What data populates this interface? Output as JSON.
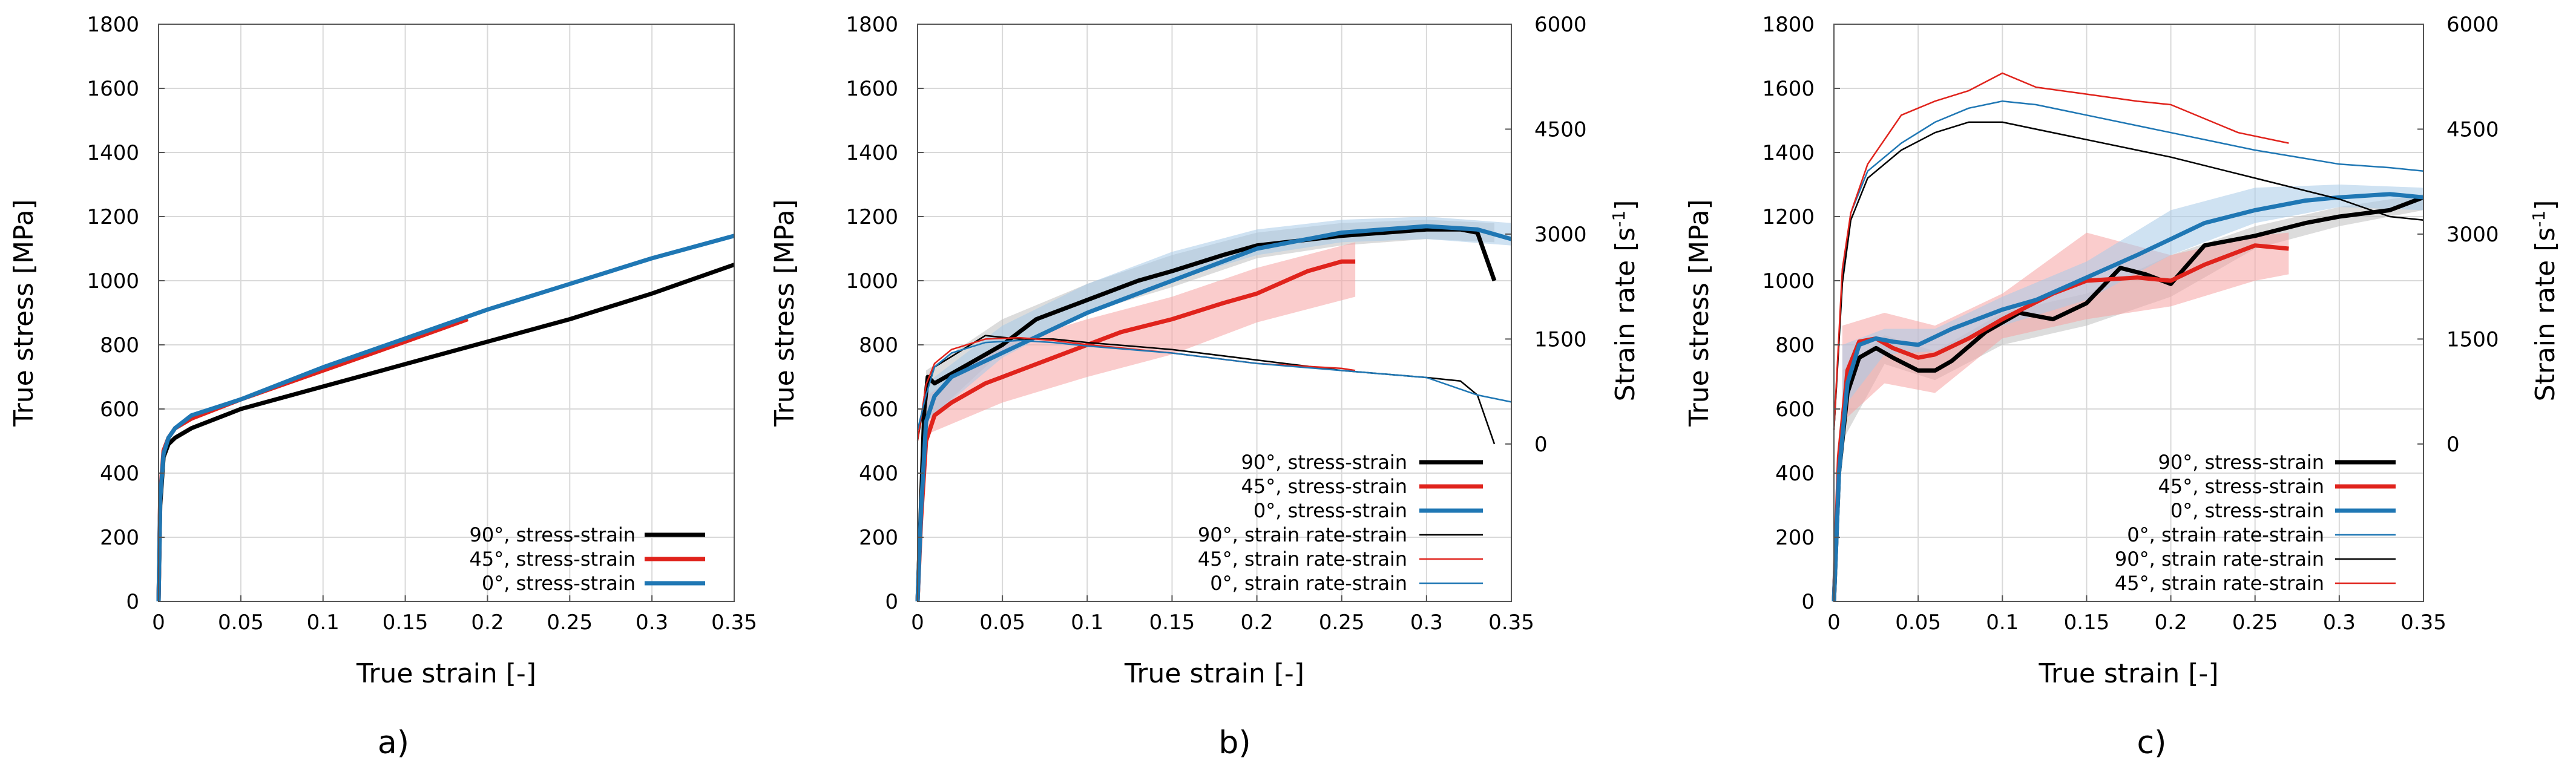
{
  "chart_data": [
    {
      "panel": "a)",
      "type": "line",
      "xlabel": "True strain [-]",
      "ylabel": "True stress [MPa]",
      "xlim": [
        0,
        0.35
      ],
      "ylim": [
        0,
        1800
      ],
      "xticks": [
        0,
        0.05,
        0.1,
        0.15,
        0.2,
        0.25,
        0.3,
        0.35
      ],
      "xtick_labels": [
        "0",
        "0.05",
        "0.1",
        "0.15",
        "0.2",
        "0.25",
        "0.3",
        "0.35"
      ],
      "yticks": [
        0,
        200,
        400,
        600,
        800,
        1000,
        1200,
        1400,
        1600,
        1800
      ],
      "ytick_labels": [
        "0",
        "200",
        "400",
        "600",
        "800",
        "1000",
        "1200",
        "1400",
        "1600",
        "1800"
      ],
      "grid": true,
      "legend_position": "bottom-right",
      "series": [
        {
          "name": "90°, stress-strain",
          "color": "#000000",
          "width": "thick",
          "axis": "left",
          "x": [
            0,
            0.001,
            0.003,
            0.006,
            0.01,
            0.02,
            0.05,
            0.1,
            0.15,
            0.2,
            0.25,
            0.3,
            0.35
          ],
          "y": [
            0,
            300,
            450,
            490,
            510,
            540,
            600,
            670,
            740,
            810,
            880,
            960,
            1050
          ]
        },
        {
          "name": "45°, stress-strain",
          "color": "#e0231c",
          "width": "thick",
          "axis": "left",
          "x": [
            0,
            0.001,
            0.003,
            0.006,
            0.01,
            0.02,
            0.05,
            0.1,
            0.15,
            0.188
          ],
          "y": [
            0,
            330,
            470,
            510,
            540,
            570,
            630,
            720,
            810,
            880
          ]
        },
        {
          "name": "0°, stress-strain",
          "color": "#1f77b4",
          "width": "thick",
          "axis": "left",
          "x": [
            0,
            0.001,
            0.003,
            0.006,
            0.01,
            0.02,
            0.05,
            0.1,
            0.15,
            0.2,
            0.25,
            0.3,
            0.35
          ],
          "y": [
            0,
            320,
            460,
            510,
            540,
            580,
            630,
            730,
            820,
            910,
            990,
            1070,
            1140
          ]
        }
      ]
    },
    {
      "panel": "b)",
      "type": "line",
      "xlabel": "True strain [-]",
      "ylabel": "True stress [MPa]",
      "y2label": "Strain rate [s",
      "y2label_sup": "-1",
      "y2label_end": "]",
      "xlim": [
        0,
        0.35
      ],
      "ylim": [
        0,
        1800
      ],
      "y2lim": [
        -2250,
        6000
      ],
      "xticks": [
        0,
        0.05,
        0.1,
        0.15,
        0.2,
        0.25,
        0.3,
        0.35
      ],
      "xtick_labels": [
        "0",
        "0.05",
        "0.1",
        "0.15",
        "0.2",
        "0.25",
        "0.3",
        "0.35"
      ],
      "yticks": [
        0,
        200,
        400,
        600,
        800,
        1000,
        1200,
        1400,
        1600,
        1800
      ],
      "ytick_labels": [
        "0",
        "200",
        "400",
        "600",
        "800",
        "1000",
        "1200",
        "1400",
        "1600",
        "1800"
      ],
      "y2ticks": [
        0,
        1500,
        3000,
        4500,
        6000
      ],
      "y2tick_labels": [
        "0",
        "1500",
        "3000",
        "4500",
        "6000"
      ],
      "grid": true,
      "legend_position": "bottom-right",
      "bands": [
        {
          "color": "#c0c0c0",
          "x": [
            0.005,
            0.05,
            0.1,
            0.15,
            0.2,
            0.25,
            0.3,
            0.34
          ],
          "lower": [
            560,
            780,
            900,
            980,
            1070,
            1110,
            1130,
            1120
          ],
          "upper": [
            720,
            880,
            990,
            1080,
            1150,
            1180,
            1190,
            1180
          ]
        },
        {
          "color": "#f5a3a3",
          "x": [
            0.005,
            0.05,
            0.1,
            0.15,
            0.2,
            0.258
          ],
          "lower": [
            520,
            620,
            700,
            770,
            870,
            950
          ],
          "upper": [
            640,
            800,
            880,
            950,
            1040,
            1120
          ]
        },
        {
          "color": "#a8cbe8",
          "x": [
            0.005,
            0.05,
            0.1,
            0.15,
            0.2,
            0.25,
            0.3,
            0.35
          ],
          "lower": [
            560,
            760,
            900,
            1000,
            1080,
            1120,
            1130,
            1110
          ],
          "upper": [
            680,
            860,
            990,
            1090,
            1160,
            1190,
            1200,
            1180
          ]
        }
      ],
      "series": [
        {
          "name": "90°,  stress-strain",
          "color": "#000000",
          "width": "thick",
          "axis": "left",
          "x": [
            0,
            0.002,
            0.004,
            0.006,
            0.01,
            0.02,
            0.03,
            0.05,
            0.07,
            0.1,
            0.13,
            0.15,
            0.18,
            0.2,
            0.25,
            0.3,
            0.32,
            0.33,
            0.34
          ],
          "y": [
            0,
            300,
            600,
            700,
            680,
            710,
            740,
            800,
            880,
            940,
            1000,
            1030,
            1080,
            1110,
            1140,
            1160,
            1160,
            1150,
            1000
          ]
        },
        {
          "name": "45°,  stress-strain",
          "color": "#e0231c",
          "width": "thick",
          "axis": "left",
          "x": [
            0,
            0.002,
            0.005,
            0.01,
            0.02,
            0.04,
            0.06,
            0.08,
            0.1,
            0.12,
            0.15,
            0.18,
            0.2,
            0.23,
            0.25,
            0.258
          ],
          "y": [
            0,
            250,
            500,
            580,
            620,
            680,
            720,
            760,
            800,
            840,
            880,
            930,
            960,
            1030,
            1060,
            1060
          ]
        },
        {
          "name": "0°,  stress-strain",
          "color": "#1f77b4",
          "width": "thick",
          "axis": "left",
          "x": [
            0,
            0.002,
            0.005,
            0.01,
            0.02,
            0.04,
            0.06,
            0.08,
            0.1,
            0.12,
            0.15,
            0.18,
            0.2,
            0.25,
            0.3,
            0.33,
            0.35
          ],
          "y": [
            0,
            280,
            560,
            640,
            700,
            750,
            800,
            850,
            900,
            940,
            1000,
            1060,
            1100,
            1150,
            1170,
            1160,
            1130
          ]
        },
        {
          "name": "90°,  strain rate-strain",
          "color": "#000000",
          "width": "thin",
          "axis": "right",
          "x": [
            0,
            0.005,
            0.01,
            0.02,
            0.04,
            0.06,
            0.08,
            0.1,
            0.15,
            0.2,
            0.25,
            0.3,
            0.32,
            0.33,
            0.34
          ],
          "y": [
            50,
            750,
            1100,
            1250,
            1550,
            1500,
            1500,
            1450,
            1350,
            1200,
            1050,
            950,
            900,
            700,
            0
          ]
        },
        {
          "name": "45°,  strain rate-strain",
          "color": "#e0231c",
          "width": "thin",
          "axis": "right",
          "x": [
            0,
            0.005,
            0.01,
            0.02,
            0.04,
            0.06,
            0.08,
            0.1,
            0.15,
            0.2,
            0.25,
            0.258
          ],
          "y": [
            50,
            850,
            1150,
            1350,
            1500,
            1520,
            1480,
            1420,
            1300,
            1150,
            1080,
            1050
          ]
        },
        {
          "name": "0°,  strain rate-strain",
          "color": "#1f77b4",
          "width": "thin",
          "axis": "right",
          "x": [
            0,
            0.005,
            0.01,
            0.02,
            0.04,
            0.06,
            0.08,
            0.1,
            0.15,
            0.2,
            0.25,
            0.3,
            0.33,
            0.35
          ],
          "y": [
            200,
            700,
            1100,
            1300,
            1450,
            1480,
            1450,
            1400,
            1300,
            1150,
            1050,
            950,
            700,
            600
          ]
        }
      ]
    },
    {
      "panel": "c)",
      "type": "line",
      "xlabel": "True strain [-]",
      "ylabel": "True stress [MPa]",
      "y2label": "Strain rate [s",
      "y2label_sup": "-1",
      "y2label_end": "]",
      "xlim": [
        0,
        0.35
      ],
      "ylim": [
        0,
        1800
      ],
      "y2lim": [
        -2250,
        6000
      ],
      "xticks": [
        0,
        0.05,
        0.1,
        0.15,
        0.2,
        0.25,
        0.3,
        0.35
      ],
      "xtick_labels": [
        "0",
        "0.05",
        "0.1",
        "0.15",
        "0.2",
        "0.25",
        "0.3",
        "0.35"
      ],
      "yticks": [
        0,
        200,
        400,
        600,
        800,
        1000,
        1200,
        1400,
        1600,
        1800
      ],
      "ytick_labels": [
        "0",
        "200",
        "400",
        "600",
        "800",
        "1000",
        "1200",
        "1400",
        "1600",
        "1800"
      ],
      "y2ticks": [
        0,
        1500,
        3000,
        4500,
        6000
      ],
      "y2tick_labels": [
        "0",
        "1500",
        "3000",
        "4500",
        "6000"
      ],
      "grid": true,
      "legend_position": "bottom-right",
      "bands": [
        {
          "color": "#c0c0c0",
          "x": [
            0.005,
            0.03,
            0.06,
            0.1,
            0.15,
            0.2,
            0.25,
            0.3,
            0.35
          ],
          "lower": [
            500,
            740,
            690,
            800,
            860,
            950,
            1100,
            1170,
            1220
          ],
          "upper": [
            720,
            830,
            780,
            900,
            960,
            1080,
            1170,
            1230,
            1270
          ]
        },
        {
          "color": "#f5a3a3",
          "x": [
            0.005,
            0.03,
            0.06,
            0.1,
            0.15,
            0.2,
            0.25,
            0.27
          ],
          "lower": [
            560,
            680,
            650,
            820,
            880,
            920,
            1000,
            1020
          ],
          "upper": [
            860,
            900,
            860,
            960,
            1150,
            1080,
            1140,
            1150
          ]
        },
        {
          "color": "#a8cbe8",
          "x": [
            0.005,
            0.03,
            0.06,
            0.1,
            0.15,
            0.2,
            0.25,
            0.3,
            0.35
          ],
          "lower": [
            600,
            770,
            780,
            860,
            940,
            1080,
            1180,
            1230,
            1220
          ],
          "upper": [
            800,
            850,
            850,
            950,
            1060,
            1220,
            1290,
            1300,
            1290
          ]
        }
      ],
      "series": [
        {
          "name": "90°, stress-strain",
          "color": "#000000",
          "width": "thick",
          "axis": "left",
          "x": [
            0,
            0.003,
            0.008,
            0.015,
            0.025,
            0.035,
            0.05,
            0.06,
            0.07,
            0.09,
            0.11,
            0.13,
            0.15,
            0.17,
            0.185,
            0.2,
            0.22,
            0.25,
            0.28,
            0.3,
            0.33,
            0.35
          ],
          "y": [
            0,
            400,
            650,
            760,
            790,
            760,
            720,
            720,
            750,
            840,
            900,
            880,
            930,
            1040,
            1020,
            990,
            1110,
            1140,
            1180,
            1200,
            1220,
            1260
          ]
        },
        {
          "name": "45°, stress-strain",
          "color": "#e0231c",
          "width": "thick",
          "axis": "left",
          "x": [
            0,
            0.003,
            0.008,
            0.015,
            0.025,
            0.035,
            0.05,
            0.06,
            0.08,
            0.1,
            0.13,
            0.15,
            0.18,
            0.2,
            0.22,
            0.25,
            0.27
          ],
          "y": [
            0,
            450,
            720,
            810,
            820,
            790,
            760,
            770,
            820,
            880,
            960,
            1000,
            1010,
            1000,
            1050,
            1110,
            1100
          ]
        },
        {
          "name": "0°, stress-strain",
          "color": "#1f77b4",
          "width": "thick",
          "axis": "left",
          "x": [
            0,
            0.003,
            0.008,
            0.015,
            0.025,
            0.035,
            0.05,
            0.07,
            0.1,
            0.12,
            0.15,
            0.18,
            0.2,
            0.22,
            0.25,
            0.28,
            0.3,
            0.33,
            0.35
          ],
          "y": [
            0,
            400,
            680,
            800,
            820,
            810,
            800,
            850,
            910,
            940,
            1010,
            1080,
            1130,
            1180,
            1220,
            1250,
            1260,
            1270,
            1260
          ]
        },
        {
          "name": "0°, strain rate-strain",
          "color": "#1f77b4",
          "width": "thin",
          "axis": "right",
          "x": [
            0,
            0.005,
            0.01,
            0.02,
            0.04,
            0.06,
            0.08,
            0.1,
            0.12,
            0.15,
            0.2,
            0.25,
            0.3,
            0.33,
            0.35
          ],
          "y": [
            200,
            2400,
            3300,
            3900,
            4300,
            4600,
            4800,
            4900,
            4850,
            4700,
            4450,
            4200,
            4000,
            3950,
            3900
          ]
        },
        {
          "name": "90°, strain rate-strain",
          "color": "#000000",
          "width": "thin",
          "axis": "right",
          "x": [
            0,
            0.005,
            0.01,
            0.02,
            0.04,
            0.06,
            0.08,
            0.1,
            0.12,
            0.15,
            0.2,
            0.25,
            0.3,
            0.33,
            0.35
          ],
          "y": [
            200,
            2300,
            3200,
            3800,
            4200,
            4450,
            4600,
            4600,
            4500,
            4350,
            4100,
            3800,
            3500,
            3250,
            3200
          ]
        },
        {
          "name": "45°, strain rate-strain",
          "color": "#e0231c",
          "width": "thin",
          "axis": "right",
          "x": [
            0,
            0.005,
            0.01,
            0.02,
            0.04,
            0.06,
            0.08,
            0.1,
            0.12,
            0.15,
            0.18,
            0.2,
            0.24,
            0.27
          ],
          "y": [
            200,
            2500,
            3300,
            4000,
            4700,
            4900,
            5050,
            5300,
            5100,
            5000,
            4900,
            4850,
            4450,
            4300
          ]
        }
      ]
    }
  ]
}
